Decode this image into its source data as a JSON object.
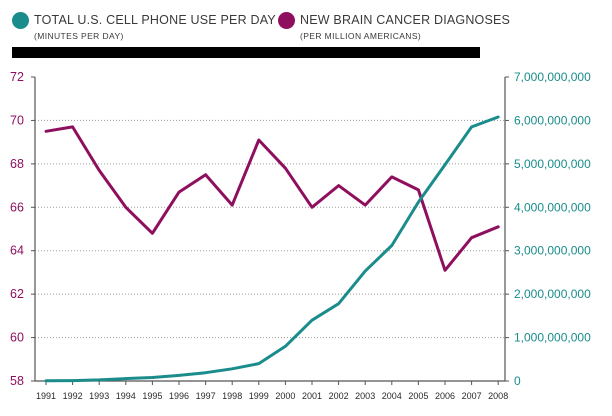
{
  "legend": {
    "cell": {
      "title": "TOTAL U.S. CELL PHONE USE PER DAY",
      "subtitle": "(MINUTES PER DAY)",
      "color": "#1a8c8c"
    },
    "cancer": {
      "title": "NEW BRAIN CANCER DIAGNOSES",
      "subtitle": "(PER MILLION AMERICANS)",
      "color": "#8e0f5e"
    }
  },
  "chart_data": {
    "type": "line",
    "x": [
      "1991",
      "1992",
      "1993",
      "1994",
      "1995",
      "1996",
      "1997",
      "1998",
      "1999",
      "2000",
      "2001",
      "2002",
      "2003",
      "2004",
      "2005",
      "2006",
      "2007",
      "2008"
    ],
    "left_axis": {
      "range": [
        58,
        72
      ],
      "ticks": [
        "58",
        "60",
        "62",
        "64",
        "66",
        "68",
        "70",
        "72"
      ],
      "color": "#8e0f5e"
    },
    "right_axis": {
      "range": [
        0,
        7000000000
      ],
      "ticks": [
        "0",
        "1,000,000,000",
        "2,000,000,000",
        "3,000,000,000",
        "4,000,000,000",
        "5,000,000,000",
        "6,000,000,000",
        "7,000,000,000"
      ],
      "color": "#1a8c8c"
    },
    "series": [
      {
        "axis": "left",
        "color": "#8e0f5e",
        "values": [
          69.5,
          69.7,
          67.7,
          66.0,
          64.8,
          66.7,
          67.5,
          66.1,
          69.1,
          67.8,
          66.0,
          67.0,
          66.1,
          67.4,
          66.8,
          63.1,
          64.6,
          65.1
        ]
      },
      {
        "axis": "right",
        "color": "#1a8c8c",
        "values": [
          5000000,
          10000000,
          25000000,
          55000000,
          80000000,
          130000000,
          190000000,
          280000000,
          400000000,
          800000000,
          1400000000,
          1780000000,
          2530000000,
          3120000000,
          4120000000,
          4980000000,
          5850000000,
          6080000000
        ]
      }
    ],
    "grid": "horizontal dotted",
    "legend_position": "top-left"
  }
}
